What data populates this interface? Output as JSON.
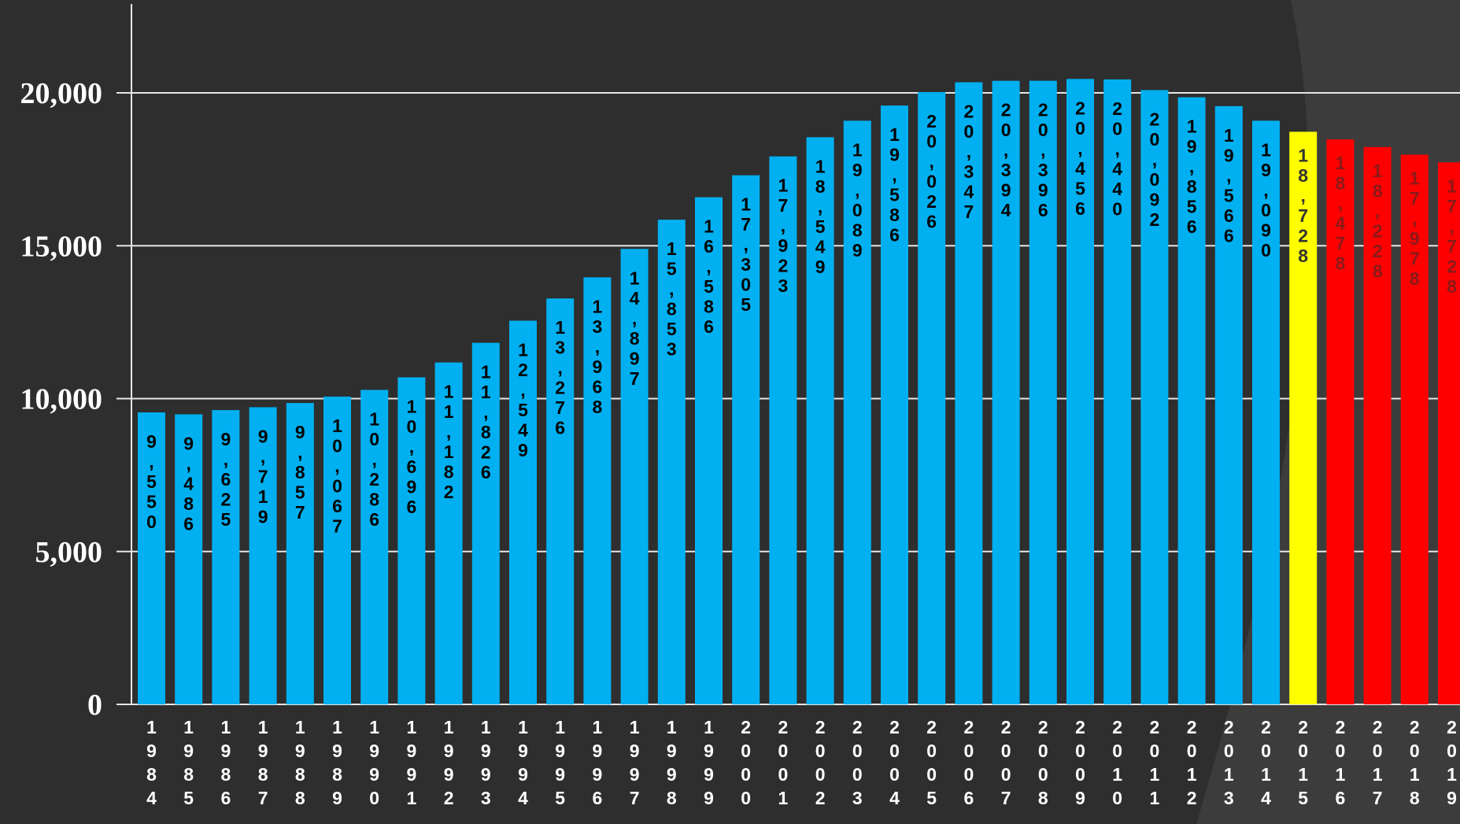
{
  "colors": {
    "background": "#2e2e2e",
    "background_arc": "#3c3c3c",
    "gridline": "#e6e6e6",
    "bar_default": "#00b0f0",
    "bar_highlight": "#ffff00",
    "bar_projection": "#ff0000",
    "label_on_blue": "#000000",
    "label_on_yellow": "#333333",
    "label_on_red": "#8a1a1a"
  },
  "chart_data": {
    "type": "bar",
    "title": "",
    "xlabel": "",
    "ylabel": "",
    "ylim": [
      0,
      20000
    ],
    "yticks": [
      0,
      5000,
      10000,
      15000,
      20000
    ],
    "ytick_labels": [
      "0",
      "5,000",
      "10,000",
      "15,000",
      "20,000"
    ],
    "grid": true,
    "legend": "none",
    "categories": [
      "1984",
      "1985",
      "1986",
      "1987",
      "1988",
      "1989",
      "1990",
      "1991",
      "1992",
      "1993",
      "1994",
      "1995",
      "1996",
      "1997",
      "1998",
      "1999",
      "2000",
      "2001",
      "2002",
      "2003",
      "2004",
      "2005",
      "2006",
      "2007",
      "2008",
      "2009",
      "2010",
      "2011",
      "2012",
      "2013",
      "2014",
      "2015",
      "2016",
      "2017",
      "2018",
      "2019"
    ],
    "values": [
      9550,
      9486,
      9625,
      9719,
      9857,
      10067,
      10286,
      10696,
      11182,
      11826,
      12549,
      13276,
      13968,
      14897,
      15853,
      16586,
      17305,
      17923,
      18549,
      19089,
      19586,
      20026,
      20347,
      20394,
      20396,
      20456,
      20440,
      20092,
      19856,
      19566,
      19090,
      18728,
      18478,
      18228,
      17978,
      17728
    ],
    "data_labels": [
      "9,550",
      "9,486",
      "9,625",
      "9,719",
      "9,857",
      "10,067",
      "10,286",
      "10,696",
      "11,182",
      "11,826",
      "12,549",
      "13,276",
      "13,968",
      "14,897",
      "15,853",
      "16,586",
      "17,305",
      "17,923",
      "18,549",
      "19,089",
      "19,586",
      "20,026",
      "20,347",
      "20,394",
      "20,396",
      "20,456",
      "20,440",
      "20,092",
      "19,856",
      "19,566",
      "19,090",
      "18,728",
      "18,478",
      "18,228",
      "17,978",
      "17,728"
    ],
    "bar_color_group": [
      "blue",
      "blue",
      "blue",
      "blue",
      "blue",
      "blue",
      "blue",
      "blue",
      "blue",
      "blue",
      "blue",
      "blue",
      "blue",
      "blue",
      "blue",
      "blue",
      "blue",
      "blue",
      "blue",
      "blue",
      "blue",
      "blue",
      "blue",
      "blue",
      "blue",
      "blue",
      "blue",
      "blue",
      "blue",
      "blue",
      "blue",
      "yellow",
      "red",
      "red",
      "red",
      "red"
    ]
  }
}
